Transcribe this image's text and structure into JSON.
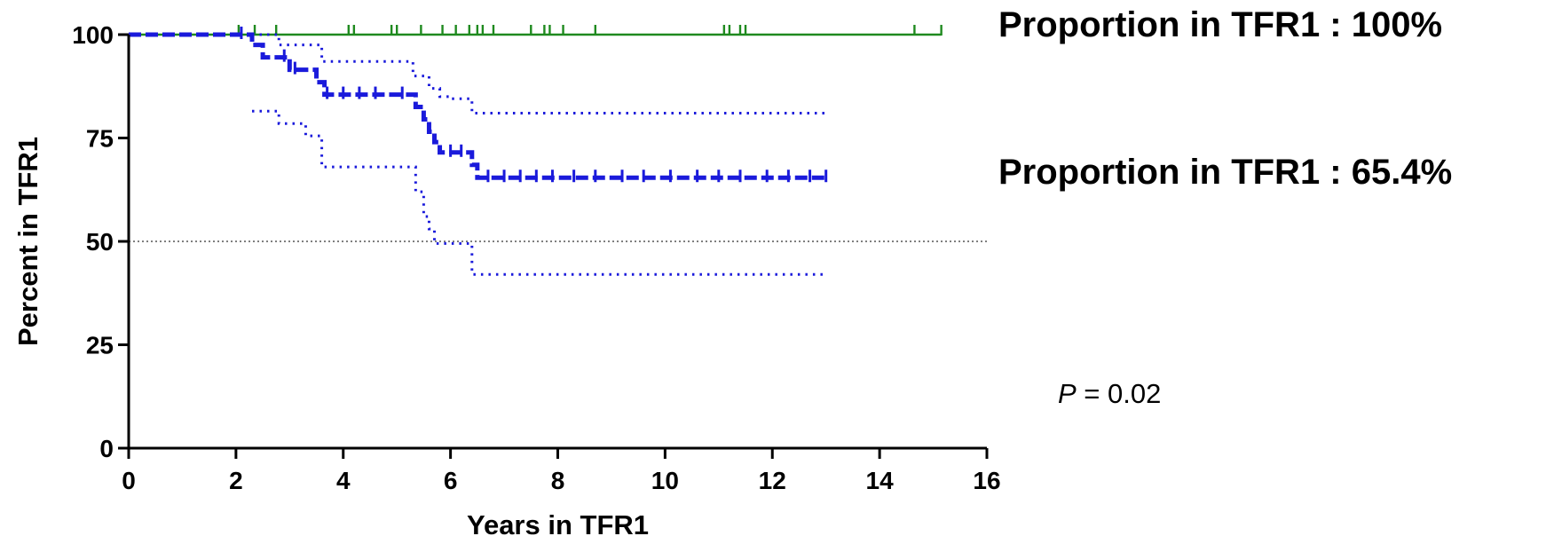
{
  "chart_data": {
    "type": "line",
    "subtype": "kaplan-meier survival",
    "xlabel": "Years in TFR1",
    "ylabel": "Percent in TFR1",
    "xlim": [
      0,
      16
    ],
    "ylim": [
      0,
      100
    ],
    "xticks": [
      0,
      2,
      4,
      6,
      8,
      10,
      12,
      14,
      16
    ],
    "yticks": [
      0,
      25,
      50,
      75,
      100
    ],
    "xtick_labels": [
      "0",
      "2",
      "4",
      "6",
      "8",
      "10",
      "12",
      "14",
      "16"
    ],
    "ytick_labels": [
      "0",
      "25",
      "50",
      "75",
      "100"
    ],
    "reference_line": {
      "y": 50,
      "style": "dotted",
      "color": "#555555"
    },
    "series": [
      {
        "style": "solid",
        "color": "#1f8a1f",
        "x": [
          0,
          15.15
        ],
        "y": [
          100,
          100
        ],
        "censor_x": [
          2.05,
          2.35,
          2.75,
          4.1,
          4.2,
          4.9,
          5.0,
          5.45,
          5.85,
          6.1,
          6.35,
          6.5,
          6.6,
          6.8,
          7.5,
          7.75,
          7.85,
          8.1,
          8.7,
          11.1,
          11.2,
          11.4,
          11.5,
          14.65,
          15.15
        ],
        "end_label": "Proportion in TFR1 : 100%"
      },
      {
        "style": "dashed",
        "color": "#1a1adb",
        "x": [
          0,
          2.3,
          2.3,
          2.5,
          2.5,
          3.0,
          3.0,
          3.5,
          3.5,
          3.65,
          3.65,
          5.35,
          5.35,
          5.5,
          5.5,
          5.6,
          5.6,
          5.7,
          5.7,
          5.8,
          5.8,
          6.4,
          6.4,
          6.5,
          6.5,
          13.0
        ],
        "y": [
          100,
          100,
          97.5,
          97.5,
          94.5,
          94.5,
          91.5,
          91.5,
          88.5,
          88.5,
          85.5,
          85.5,
          82.5,
          82.5,
          79.5,
          79.5,
          76.5,
          76.5,
          74.0,
          74.0,
          71.5,
          71.5,
          68.5,
          68.5,
          65.4,
          65.4
        ],
        "censor_x": [
          2.1,
          2.9,
          3.1,
          3.7,
          4.0,
          4.3,
          4.6,
          5.1,
          6.0,
          6.2,
          6.7,
          7.0,
          7.3,
          7.6,
          7.9,
          8.3,
          8.7,
          9.2,
          9.6,
          10.1,
          10.6,
          11.0,
          11.4,
          11.9,
          12.3,
          12.7,
          13.0
        ],
        "end_label": "Proportion in TFR1 : 65.4%"
      },
      {
        "style": "dotted",
        "color": "#1a1adb",
        "x": [
          2.3,
          2.8,
          2.8,
          3.6,
          3.6,
          5.3,
          5.3,
          5.6,
          5.6,
          5.8,
          5.8,
          6.0,
          6.0,
          6.4,
          6.4,
          13.0
        ],
        "y": [
          100,
          100,
          97.5,
          97.5,
          93.5,
          93.5,
          90.0,
          90.0,
          87.0,
          87.0,
          85.0,
          85.0,
          84.5,
          84.5,
          81.0,
          81.0
        ]
      },
      {
        "style": "dotted",
        "color": "#1a1adb",
        "x": [
          2.3,
          2.8,
          2.8,
          3.3,
          3.3,
          3.6,
          3.6,
          5.35,
          5.35,
          5.5,
          5.5,
          5.6,
          5.6,
          5.7,
          5.7,
          6.4,
          6.4,
          13.0
        ],
        "y": [
          81.5,
          81.5,
          78.5,
          78.5,
          75.5,
          75.5,
          68.0,
          68.0,
          62.0,
          62.0,
          56.0,
          56.0,
          53.0,
          53.0,
          49.5,
          49.5,
          42.0,
          42.0
        ]
      }
    ],
    "annotations": {
      "p_label": "P",
      "p_value": " = 0.02"
    }
  }
}
